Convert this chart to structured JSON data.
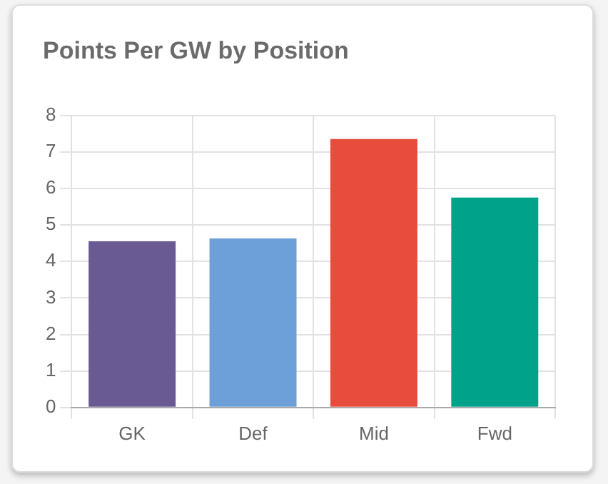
{
  "chart_data": {
    "type": "bar",
    "title": "Points Per GW by Position",
    "categories": [
      "GK",
      "Def",
      "Mid",
      "Fwd"
    ],
    "values": [
      4.55,
      4.63,
      7.35,
      5.75
    ],
    "colors": [
      "#6a5a94",
      "#6d9fd8",
      "#e84c3d",
      "#00a38a"
    ],
    "ylim": [
      0,
      8
    ],
    "yticks": [
      0,
      1,
      2,
      3,
      4,
      5,
      6,
      7,
      8
    ],
    "grid": true
  }
}
